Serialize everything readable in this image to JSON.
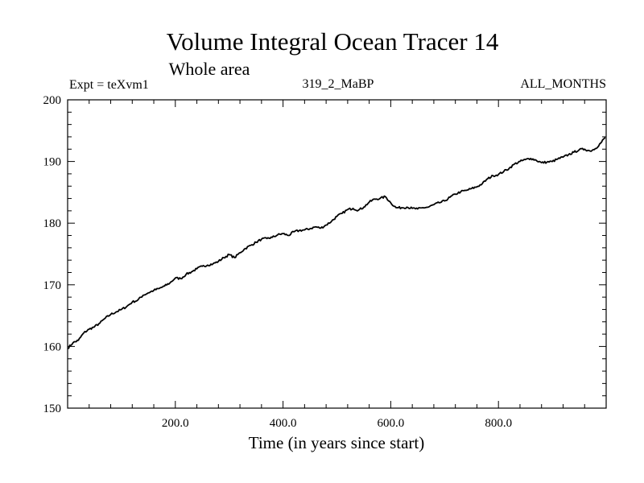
{
  "chart_data": {
    "type": "line",
    "title": "Volume Integral Ocean Tracer 14",
    "subtitle": "Whole area",
    "annotations": {
      "left": "Expt = teXvm1",
      "center": "319_2_MaBP",
      "right": "ALL_MONTHS"
    },
    "xlabel": "Time (in years since start)",
    "ylabel": "",
    "xlim": [
      0,
      1000
    ],
    "ylim": [
      150,
      200
    ],
    "x_ticks": [
      200,
      400,
      600,
      800
    ],
    "x_tick_labels": [
      "200.0",
      "400.0",
      "600.0",
      "800.0"
    ],
    "y_ticks": [
      150,
      160,
      170,
      180,
      190,
      200
    ],
    "y_tick_labels": [
      "150",
      "160",
      "170",
      "180",
      "190",
      "200"
    ],
    "grid": false,
    "series": [
      {
        "color": "#000000",
        "x": [
          0,
          10,
          20,
          30,
          40,
          50,
          60,
          70,
          80,
          90,
          100,
          110,
          120,
          130,
          140,
          150,
          160,
          170,
          180,
          190,
          200,
          210,
          220,
          230,
          240,
          250,
          260,
          270,
          280,
          290,
          300,
          310,
          320,
          330,
          340,
          350,
          360,
          370,
          380,
          390,
          400,
          410,
          420,
          430,
          440,
          450,
          460,
          470,
          480,
          490,
          500,
          510,
          520,
          530,
          540,
          550,
          560,
          570,
          580,
          590,
          600,
          610,
          620,
          630,
          640,
          650,
          660,
          670,
          680,
          690,
          700,
          710,
          720,
          730,
          740,
          750,
          760,
          770,
          780,
          790,
          800,
          810,
          820,
          830,
          840,
          850,
          860,
          870,
          880,
          890,
          900,
          910,
          920,
          930,
          940,
          950,
          960,
          970,
          980,
          990,
          998
        ],
        "y": [
          159.7,
          160.6,
          161.0,
          162.2,
          162.8,
          163.2,
          163.8,
          164.6,
          165.2,
          165.6,
          166.0,
          166.5,
          167.2,
          167.5,
          168.3,
          168.7,
          169.1,
          169.4,
          169.8,
          170.3,
          171.1,
          171.0,
          171.7,
          172.1,
          172.6,
          173.0,
          173.2,
          173.4,
          173.8,
          174.4,
          174.9,
          174.4,
          175.2,
          175.9,
          176.4,
          176.9,
          177.4,
          177.5,
          177.7,
          178.1,
          178.3,
          178.0,
          178.6,
          178.8,
          178.9,
          179.1,
          179.4,
          179.2,
          179.7,
          180.3,
          181.1,
          181.6,
          182.2,
          182.4,
          182.1,
          182.6,
          183.4,
          183.9,
          184.0,
          184.3,
          183.3,
          182.5,
          182.5,
          182.6,
          182.4,
          182.3,
          182.5,
          182.6,
          183.0,
          183.3,
          183.6,
          184.2,
          184.7,
          185.1,
          185.3,
          185.6,
          185.9,
          186.4,
          187.2,
          187.7,
          187.9,
          188.4,
          188.9,
          189.6,
          190.0,
          190.3,
          190.5,
          190.2,
          189.8,
          189.9,
          190.0,
          190.4,
          190.7,
          191.1,
          191.5,
          191.9,
          192.0,
          191.7,
          192.1,
          193.0,
          193.9
        ]
      }
    ]
  }
}
